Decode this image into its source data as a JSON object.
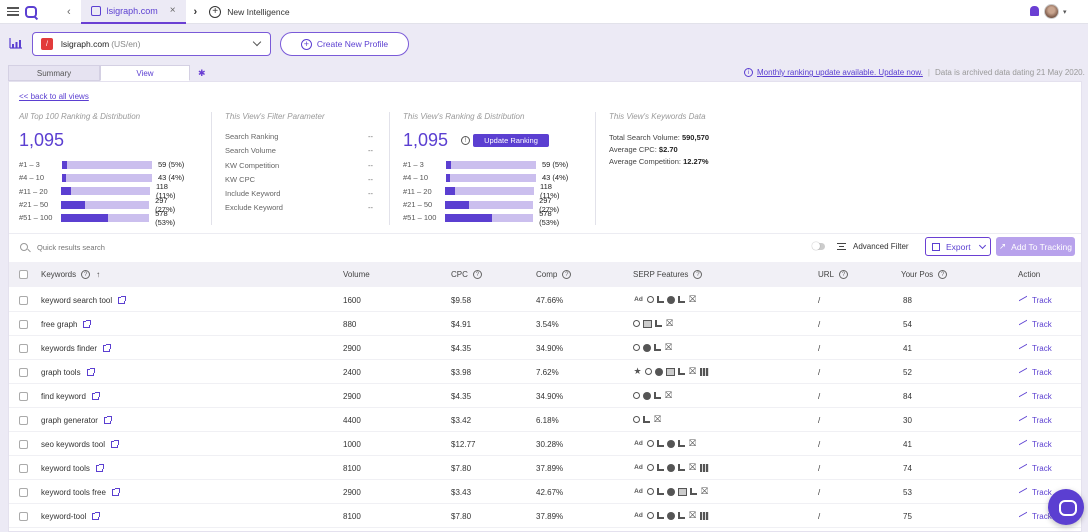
{
  "browser": {
    "tab_title": "lsigraph.com",
    "new_tab_label": "New Intelligence"
  },
  "profile": {
    "domain": "lsigraph.com",
    "location": "(US/en)",
    "create_label": "Create New Profile"
  },
  "view_tabs": [
    "Summary",
    "View"
  ],
  "notice": {
    "link": "Monthly ranking update available. Update now.",
    "archived": "Data is archived data dating 21 May 2020."
  },
  "back_link": "<< back to all views",
  "top100": {
    "title": "All Top 100 Ranking & Distribution",
    "total": "1,095",
    "rows": [
      {
        "label": "#1 – 3",
        "value": "59 (5%)",
        "pct": 5
      },
      {
        "label": "#4 – 10",
        "value": "43 (4%)",
        "pct": 4
      },
      {
        "label": "#11 – 20",
        "value": "118 (11%)",
        "pct": 11
      },
      {
        "label": "#21 – 50",
        "value": "297 (27%)",
        "pct": 27
      },
      {
        "label": "#51 – 100",
        "value": "578 (53%)",
        "pct": 53
      }
    ]
  },
  "filter_params": {
    "title": "This View's Filter Parameter",
    "rows": [
      {
        "label": "Search Ranking",
        "value": "--"
      },
      {
        "label": "Search Volume",
        "value": "--"
      },
      {
        "label": "KW Competition",
        "value": "--"
      },
      {
        "label": "KW CPC",
        "value": "--"
      },
      {
        "label": "Include Keyword",
        "value": "--"
      },
      {
        "label": "Exclude Keyword",
        "value": "--"
      }
    ]
  },
  "view_ranking": {
    "title": "This View's Ranking & Distribution",
    "total": "1,095",
    "update_label": "Update Ranking",
    "rows": [
      {
        "label": "#1 – 3",
        "value": "59 (5%)",
        "pct": 5
      },
      {
        "label": "#4 – 10",
        "value": "43 (4%)",
        "pct": 4
      },
      {
        "label": "#11 – 20",
        "value": "118 (11%)",
        "pct": 11
      },
      {
        "label": "#21 – 50",
        "value": "297 (27%)",
        "pct": 27
      },
      {
        "label": "#51 – 100",
        "value": "578 (53%)",
        "pct": 53
      }
    ]
  },
  "kw_data": {
    "title": "This View's Keywords Data",
    "total_volume_label": "Total Search Volume:",
    "total_volume": "590,570",
    "avg_cpc_label": "Average CPC:",
    "avg_cpc": "$2.70",
    "avg_comp_label": "Average Competition:",
    "avg_comp": "12.27%"
  },
  "toolbar": {
    "search_placeholder": "Quick results search",
    "advanced_filter": "Advanced Filter",
    "export": "Export",
    "add_tracking": "Add To Tracking"
  },
  "columns": {
    "keywords": "Keywords",
    "volume": "Volume",
    "cpc": "CPC",
    "comp": "Comp",
    "serp": "SERP Features",
    "url": "URL",
    "pos": "Your Pos",
    "action": "Action"
  },
  "rows": [
    {
      "keyword": "keyword search tool",
      "volume": "1600",
      "cpc": "$9.58",
      "comp": "47.66%",
      "serp": [
        "ad",
        "search",
        "list",
        "circle",
        "list",
        "x"
      ],
      "url": "/",
      "pos": "88",
      "action": "Track"
    },
    {
      "keyword": "free graph",
      "volume": "880",
      "cpc": "$4.91",
      "comp": "3.54%",
      "serp": [
        "search",
        "image",
        "list",
        "x"
      ],
      "url": "/",
      "pos": "54",
      "action": "Track"
    },
    {
      "keyword": "keywords finder",
      "volume": "2900",
      "cpc": "$4.35",
      "comp": "34.90%",
      "serp": [
        "search",
        "circle",
        "list",
        "x"
      ],
      "url": "/",
      "pos": "41",
      "action": "Track"
    },
    {
      "keyword": "graph tools",
      "volume": "2400",
      "cpc": "$3.98",
      "comp": "7.62%",
      "serp": [
        "star",
        "search",
        "circle",
        "image",
        "list",
        "x",
        "bars"
      ],
      "url": "/",
      "pos": "52",
      "action": "Track"
    },
    {
      "keyword": "find keyword",
      "volume": "2900",
      "cpc": "$4.35",
      "comp": "34.90%",
      "serp": [
        "search",
        "circle",
        "list",
        "x"
      ],
      "url": "/",
      "pos": "84",
      "action": "Track"
    },
    {
      "keyword": "graph generator",
      "volume": "4400",
      "cpc": "$3.42",
      "comp": "6.18%",
      "serp": [
        "search",
        "list",
        "x"
      ],
      "url": "/",
      "pos": "30",
      "action": "Track"
    },
    {
      "keyword": "seo keywords tool",
      "volume": "1000",
      "cpc": "$12.77",
      "comp": "30.28%",
      "serp": [
        "ad",
        "search",
        "list",
        "circle",
        "list",
        "x"
      ],
      "url": "/",
      "pos": "41",
      "action": "Track"
    },
    {
      "keyword": "keyword tools",
      "volume": "8100",
      "cpc": "$7.80",
      "comp": "37.89%",
      "serp": [
        "ad",
        "search",
        "list",
        "circle",
        "list",
        "x",
        "bars"
      ],
      "url": "/",
      "pos": "74",
      "action": "Track"
    },
    {
      "keyword": "keyword tools free",
      "volume": "2900",
      "cpc": "$3.43",
      "comp": "42.67%",
      "serp": [
        "ad",
        "search",
        "list",
        "circle",
        "image",
        "list",
        "x"
      ],
      "url": "/",
      "pos": "53",
      "action": "Track"
    },
    {
      "keyword": "keyword-tool",
      "volume": "8100",
      "cpc": "$7.80",
      "comp": "37.89%",
      "serp": [
        "ad",
        "search",
        "list",
        "circle",
        "list",
        "x",
        "bars"
      ],
      "url": "/",
      "pos": "75",
      "action": "Track"
    }
  ]
}
